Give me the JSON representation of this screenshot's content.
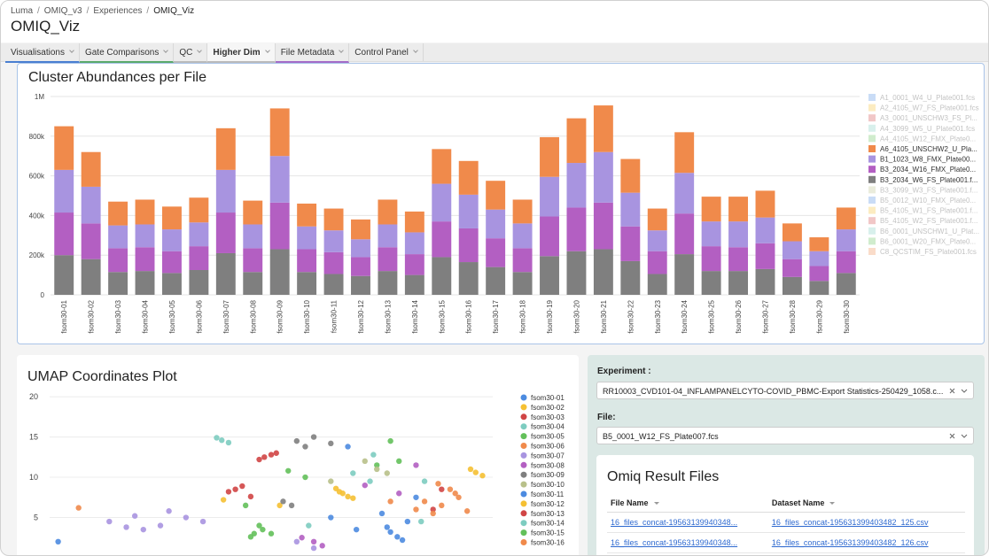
{
  "breadcrumb": [
    "Luma",
    "OMIQ_v3",
    "Experiences",
    "OMIQ_Viz"
  ],
  "title": "OMIQ_Viz",
  "tabs": [
    "Visualisations",
    "Gate Comparisons",
    "QC",
    "Higher Dim",
    "File Metadata",
    "Control Panel"
  ],
  "chart_data": [
    {
      "type": "bar",
      "stacked": true,
      "title": "Cluster Abundances per File",
      "categories": [
        "fsom30-01",
        "fsom30-02",
        "fsom30-03",
        "fsom30-04",
        "fsom30-05",
        "fsom30-06",
        "fsom30-07",
        "fsom30-08",
        "fsom30-09",
        "fsom30-10",
        "fsom30-11",
        "fsom30-12",
        "fsom30-13",
        "fsom30-14",
        "fsom30-15",
        "fsom30-16",
        "fsom30-17",
        "fsom30-18",
        "fsom30-19",
        "fsom30-20",
        "fsom30-21",
        "fsom30-22",
        "fsom30-23",
        "fsom30-24",
        "fsom30-25",
        "fsom30-26",
        "fsom30-27",
        "fsom30-28",
        "fsom30-29",
        "fsom30-30"
      ],
      "ylim": [
        0,
        1000000
      ],
      "yticks": [
        0,
        {
          "value": 200000,
          "label": "200k"
        },
        {
          "value": 400000,
          "label": "400k"
        },
        {
          "value": 600000,
          "label": "600k"
        },
        {
          "value": 800000,
          "label": "800k"
        },
        {
          "value": 1000000,
          "label": "1M"
        }
      ],
      "grid": true,
      "series": [
        {
          "name": "A1_0001_W4_U_Plate001.fcs",
          "color": "#4c8be0",
          "visible": false
        },
        {
          "name": "A2_4105_W7_FS_Plate001.fcs",
          "color": "#f5c033",
          "visible": false
        },
        {
          "name": "A3_0001_UNSCHW3_FS_Pl...",
          "color": "#d04545",
          "visible": false
        },
        {
          "name": "A4_3099_W5_U_Plate001.fcs",
          "color": "#7dccc0",
          "visible": false
        },
        {
          "name": "A4_4105_W12_FMX_Plate0...",
          "color": "#63c05a",
          "visible": false
        },
        {
          "name": "A6_4105_UNSCHW2_U_Pla...",
          "color": "#f08a4b",
          "visible": true,
          "values": [
            220000,
            175000,
            120000,
            125000,
            115000,
            125000,
            210000,
            120000,
            240000,
            115000,
            110000,
            100000,
            125000,
            105000,
            175000,
            170000,
            145000,
            120000,
            200000,
            225000,
            235000,
            170000,
            110000,
            205000,
            125000,
            125000,
            135000,
            90000,
            70000,
            110000
          ]
        },
        {
          "name": "B1_1023_W8_FMX_Plate00...",
          "color": "#a894e0",
          "visible": true,
          "values": [
            215000,
            185000,
            115000,
            115000,
            110000,
            120000,
            215000,
            120000,
            235000,
            115000,
            110000,
            90000,
            115000,
            110000,
            190000,
            170000,
            145000,
            125000,
            200000,
            225000,
            255000,
            170000,
            105000,
            205000,
            125000,
            130000,
            130000,
            90000,
            75000,
            110000
          ]
        },
        {
          "name": "B3_2034_W16_FMX_Plate0...",
          "color": "#b35fc2",
          "visible": true,
          "values": [
            215000,
            180000,
            120000,
            120000,
            110000,
            120000,
            205000,
            120000,
            235000,
            115000,
            110000,
            95000,
            120000,
            105000,
            180000,
            170000,
            145000,
            120000,
            200000,
            220000,
            235000,
            175000,
            115000,
            205000,
            125000,
            120000,
            130000,
            90000,
            75000,
            110000
          ]
        },
        {
          "name": "B3_2034_W6_FS_Plate001.f...",
          "color": "#7f7f7f",
          "visible": true,
          "values": [
            200000,
            180000,
            115000,
            120000,
            110000,
            125000,
            210000,
            115000,
            230000,
            115000,
            105000,
            95000,
            120000,
            100000,
            190000,
            165000,
            140000,
            115000,
            195000,
            220000,
            230000,
            170000,
            105000,
            205000,
            120000,
            120000,
            130000,
            90000,
            70000,
            110000
          ]
        },
        {
          "name": "B3_3099_W3_FS_Plate001.f...",
          "color": "#b8c08a",
          "visible": false
        },
        {
          "name": "B5_0012_W10_FMX_Plate0...",
          "color": "#4c8be0",
          "visible": false
        },
        {
          "name": "B5_4105_W1_FS_Plate001.f...",
          "color": "#f5c033",
          "visible": false
        },
        {
          "name": "B5_4105_W2_FS_Plate001.f...",
          "color": "#d04545",
          "visible": false
        },
        {
          "name": "B6_0001_UNSCHW1_U_Plat...",
          "color": "#7dccc0",
          "visible": false
        },
        {
          "name": "B6_0001_W20_FMX_Plate0...",
          "color": "#63c05a",
          "visible": false
        },
        {
          "name": "C8_QCSTIM_FS_Plate001.fcs",
          "color": "#f08a4b",
          "visible": false
        }
      ]
    },
    {
      "type": "scatter",
      "title": "UMAP Coordinates Plot",
      "xlim": [
        -11,
        15
      ],
      "ylim": [
        0,
        21
      ],
      "yticks": [
        5,
        10,
        15,
        20
      ],
      "grid": true,
      "series": [
        {
          "name": "fsom30-01",
          "color": "#4c8be0",
          "x": [
            9.0,
            9.4,
            8.8,
            9.7,
            6.5,
            -10.5,
            10.5
          ],
          "values": [
            3.2,
            2.6,
            3.8,
            2.2,
            13.8,
            2.0,
            7.5
          ]
        },
        {
          "name": "fsom30-02",
          "color": "#f5c033",
          "x": [
            14.0,
            14.4,
            13.7,
            6.0,
            6.5,
            2.5
          ],
          "values": [
            10.6,
            10.2,
            11.0,
            8.2,
            7.6,
            6.5
          ]
        },
        {
          "name": "fsom30-03",
          "color": "#d04545",
          "x": [
            1.6,
            2.0,
            1.3,
            2.3,
            12.0,
            11.5
          ],
          "values": [
            12.5,
            12.8,
            12.2,
            13.0,
            8.5,
            6.0
          ]
        },
        {
          "name": "fsom30-04",
          "color": "#7dccc0",
          "x": [
            -0.9,
            -0.5,
            -1.2,
            7.8,
            10.8
          ],
          "values": [
            14.6,
            14.3,
            14.9,
            9.5,
            4.5
          ]
        },
        {
          "name": "fsom30-05",
          "color": "#63c05a",
          "x": [
            1.0,
            1.5,
            0.8,
            9.0,
            8.2,
            4.0
          ],
          "values": [
            3.0,
            3.5,
            2.6,
            14.5,
            11.5,
            10.0
          ]
        },
        {
          "name": "fsom30-06",
          "color": "#f08a4b",
          "x": [
            11.0,
            12.0,
            13.0,
            11.5,
            12.5,
            -9.3
          ],
          "values": [
            7.0,
            6.5,
            7.5,
            5.5,
            8.5,
            6.2
          ]
        },
        {
          "name": "fsom30-07",
          "color": "#a894e0",
          "x": [
            -7.5,
            -6.0,
            -4.5,
            -3.0,
            -2.0,
            -5.5,
            -4.0,
            -6.5,
            3.5,
            4.5
          ],
          "values": [
            4.5,
            5.2,
            4.0,
            5.0,
            4.5,
            3.5,
            5.8,
            3.8,
            2.0,
            1.2
          ]
        },
        {
          "name": "fsom30-08",
          "color": "#b35fc2",
          "x": [
            4.5,
            5.0,
            3.8,
            7.5,
            10.5,
            9.5
          ],
          "values": [
            2.0,
            1.5,
            2.5,
            9.0,
            11.5,
            8.0
          ]
        },
        {
          "name": "fsom30-09",
          "color": "#7f7f7f",
          "x": [
            3.5,
            4.5,
            5.5,
            4.0,
            2.7,
            3.2
          ],
          "values": [
            14.5,
            15.0,
            14.2,
            13.8,
            7.0,
            6.5
          ]
        },
        {
          "name": "fsom30-10",
          "color": "#b8c08a",
          "x": [
            8.2,
            8.8,
            7.5,
            5.5
          ],
          "values": [
            11.0,
            10.5,
            12.0,
            9.5
          ]
        },
        {
          "name": "fsom30-11",
          "color": "#4c8be0",
          "x": [
            8.5,
            10.0,
            7.0,
            5.5
          ],
          "values": [
            5.5,
            4.5,
            3.5,
            5.0
          ]
        },
        {
          "name": "fsom30-12",
          "color": "#f5c033",
          "x": [
            6.2,
            6.8,
            5.8,
            -0.8
          ],
          "values": [
            8.0,
            7.4,
            8.6,
            7.2
          ]
        },
        {
          "name": "fsom30-13",
          "color": "#d04545",
          "x": [
            -0.1,
            0.3,
            -0.5,
            0.8
          ],
          "values": [
            8.5,
            8.9,
            8.2,
            7.6
          ]
        },
        {
          "name": "fsom30-14",
          "color": "#7dccc0",
          "x": [
            6.8,
            8.0,
            11.0,
            4.2
          ],
          "values": [
            10.5,
            12.8,
            9.5,
            4.0
          ]
        },
        {
          "name": "fsom30-15",
          "color": "#63c05a",
          "x": [
            1.3,
            2.0,
            0.5,
            9.5,
            3.0
          ],
          "values": [
            4.0,
            3.0,
            6.5,
            12.0,
            10.8
          ]
        },
        {
          "name": "fsom30-16",
          "color": "#f08a4b",
          "x": [
            10.5,
            12.8,
            13.5,
            11.8,
            9.0
          ],
          "values": [
            6.0,
            8.0,
            5.8,
            9.2,
            7.0
          ]
        }
      ]
    }
  ],
  "experiment": {
    "label": "Experiment :",
    "value": "RR10003_CVD101-04_INFLAMPANELCYTO-COVID_PBMC-Export Statistics-250429_1058.c..."
  },
  "file": {
    "label": "File:",
    "value": "B5_0001_W12_FS_Plate007.fcs"
  },
  "result_files": {
    "title": "Omiq Result Files",
    "columns": [
      "File Name",
      "Dataset Name"
    ],
    "rows": [
      [
        "16_files_concat-19563139940348...",
        "16_files_concat-195631399403482_125.csv"
      ],
      [
        "16_files_concat-19563139940348...",
        "16_files_concat-195631399403482_126.csv"
      ]
    ]
  }
}
